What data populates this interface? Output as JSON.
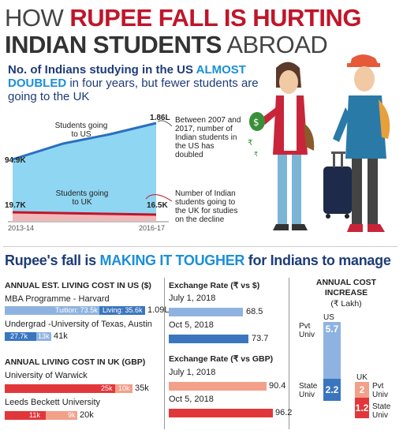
{
  "headline": {
    "line1_plain": "HOW ",
    "line1_bold": "RUPEE FALL IS HURTING",
    "line2_bold": "INDIAN STUDENTS",
    "line2_plain": " ABROAD"
  },
  "subhead": {
    "part1": "No. of Indians studying in the US ",
    "part2": "ALMOST DOUBLED",
    "part3": " in four years, but fewer students are going to the UK"
  },
  "colors": {
    "red": "#c0152a",
    "dark_blue": "#1e3c78",
    "light_blue": "#1a8fd8",
    "area_blue": "#8fd6f2",
    "bar_blue_dark": "#3a76bf",
    "bar_blue_light": "#8fb3e0",
    "bar_red_dark": "#e2373a",
    "bar_red_light": "#f2a08a"
  },
  "area_chart": {
    "us_label": "Students going to US",
    "uk_label": "Students going to UK",
    "us_start": "94.9K",
    "us_end": "1.86L",
    "uk_start": "19.7K",
    "uk_end": "16.5K",
    "x_start": "2013-14",
    "x_end": "2016-17",
    "note_us": "Between 2007 and 2017, number of Indian students in the US has doubled",
    "note_uk": "Number of Indian students going to the UK for studies on the decline"
  },
  "section2_title": {
    "part1": "Rupee's fall is ",
    "part2": "MAKING IT TOUGHER",
    "part3": " for Indians to manage"
  },
  "living_cost_us": {
    "heading": "ANNUAL EST. LIVING COST IN US ($)",
    "rows": [
      {
        "name": "MBA Programme - Harvard",
        "tuition_label": "Tuition: 73.5k",
        "living_label": "Living: 35.6k",
        "total": "1.09L"
      },
      {
        "name": "Undergrad -University of Texas, Austin",
        "tuition_label": "27.7k",
        "living_label": "13k",
        "total": "41k"
      }
    ]
  },
  "living_cost_uk": {
    "heading": "ANNUAL LIVING COST IN UK (GBP)",
    "rows": [
      {
        "name": "University of Warwick",
        "tuition_label": "25k",
        "living_label": "10k",
        "total": "35k"
      },
      {
        "name": "Leeds Beckett University",
        "tuition_label": "11k",
        "living_label": "9k",
        "total": "20k"
      }
    ]
  },
  "exchange_usd": {
    "heading": "Exchange Rate (₹ vs $)",
    "rows": [
      {
        "date": "July 1, 2018",
        "value": "68.5"
      },
      {
        "date": "Oct 5, 2018",
        "value": "73.7"
      }
    ]
  },
  "exchange_gbp": {
    "heading": "Exchange Rate (₹ vs GBP)",
    "rows": [
      {
        "date": "July 1, 2018",
        "value": "90.4"
      },
      {
        "date": "Oct 5, 2018",
        "value": "96.2"
      }
    ]
  },
  "cost_increase": {
    "heading1": "ANNUAL COST",
    "heading2": "INCREASE",
    "unit": "(₹ Lakh)",
    "us_label": "US",
    "uk_label": "UK",
    "pvt_label": "Pvt Univ",
    "state_label": "State Univ",
    "us_pvt": "5.7",
    "us_state": "2.2",
    "uk_pvt": "2",
    "uk_state": "1.2"
  },
  "chart_data": [
    {
      "type": "area",
      "x": [
        "2013-14",
        "2016-17"
      ],
      "series": [
        {
          "name": "Students going to US",
          "values": [
            94900,
            186000
          ]
        },
        {
          "name": "Students going to UK",
          "values": [
            19700,
            16500
          ]
        }
      ]
    },
    {
      "type": "bar",
      "title": "ANNUAL EST. LIVING COST IN US ($)",
      "categories": [
        "MBA Programme - Harvard",
        "Undergrad -University of Texas, Austin"
      ],
      "series": [
        {
          "name": "Tuition",
          "values": [
            73500,
            27700
          ]
        },
        {
          "name": "Living",
          "values": [
            35600,
            13000
          ]
        }
      ]
    },
    {
      "type": "bar",
      "title": "ANNUAL LIVING COST IN UK (GBP)",
      "categories": [
        "University of Warwick",
        "Leeds Beckett University"
      ],
      "series": [
        {
          "values": [
            25000,
            11000
          ]
        },
        {
          "values": [
            10000,
            9000
          ]
        }
      ]
    },
    {
      "type": "bar",
      "title": "Exchange Rate (₹ vs $)",
      "categories": [
        "July 1, 2018",
        "Oct 5, 2018"
      ],
      "values": [
        68.5,
        73.7
      ]
    },
    {
      "type": "bar",
      "title": "Exchange Rate (₹ vs GBP)",
      "categories": [
        "July 1, 2018",
        "Oct 5, 2018"
      ],
      "values": [
        90.4,
        96.2
      ]
    },
    {
      "type": "bar",
      "title": "ANNUAL COST INCREASE (₹ Lakh)",
      "categories": [
        "US",
        "UK"
      ],
      "series": [
        {
          "name": "Pvt Univ",
          "values": [
            5.7,
            2
          ]
        },
        {
          "name": "State Univ",
          "values": [
            2.2,
            1.2
          ]
        }
      ]
    }
  ]
}
